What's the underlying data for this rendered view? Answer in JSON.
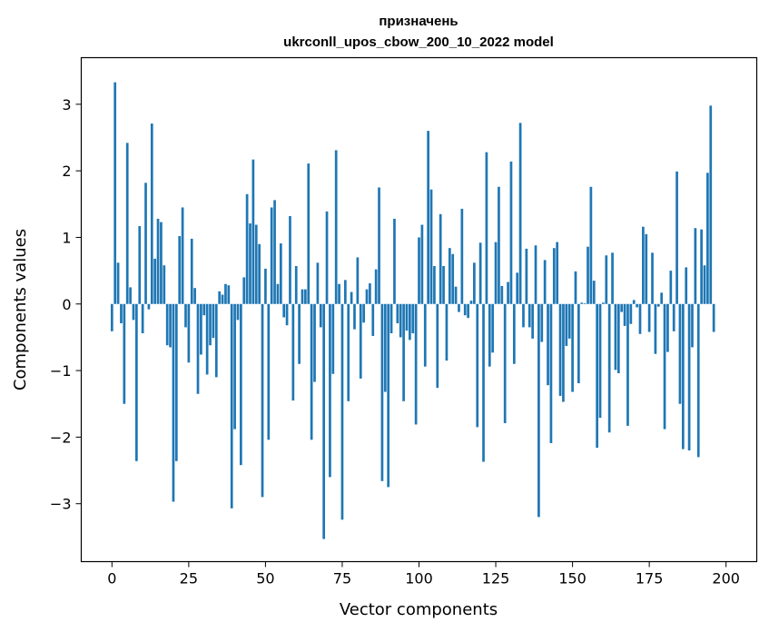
{
  "chart_data": {
    "type": "bar",
    "title_line1": "призначень",
    "title_line2": "ukrconll_upos_cbow_200_10_2022 model",
    "xlabel": "Vector components",
    "ylabel": "Components values",
    "xlim": [
      -10,
      210
    ],
    "ylim": [
      -3.87,
      3.7
    ],
    "xticks": [
      0,
      25,
      50,
      75,
      100,
      125,
      150,
      175,
      200
    ],
    "yticks": [
      -3,
      -2,
      -1,
      0,
      1,
      2,
      3
    ],
    "xtick_labels": [
      "0",
      "25",
      "50",
      "75",
      "100",
      "125",
      "150",
      "175",
      "200"
    ],
    "ytick_labels": [
      "−3",
      "−2",
      "−1",
      "0",
      "1",
      "2",
      "3"
    ],
    "grid": false,
    "bar_color": "#1f77b4",
    "values": [
      -0.41,
      3.33,
      0.62,
      -0.29,
      -1.5,
      2.42,
      0.25,
      -0.24,
      -2.36,
      1.17,
      -0.44,
      1.82,
      -0.08,
      2.71,
      0.68,
      1.28,
      1.23,
      0.58,
      -0.62,
      -0.65,
      -2.97,
      -2.36,
      1.02,
      1.45,
      -0.35,
      -0.88,
      0.98,
      0.24,
      -1.35,
      -0.76,
      -0.17,
      -1.06,
      -0.62,
      -0.51,
      -1.1,
      0.19,
      0.14,
      0.3,
      0.28,
      -3.07,
      -1.88,
      -0.24,
      -2.42,
      0.4,
      1.65,
      1.21,
      2.17,
      1.19,
      0.9,
      -2.9,
      0.53,
      -2.04,
      1.45,
      1.56,
      0.3,
      0.91,
      -0.2,
      -0.32,
      1.32,
      -1.45,
      0.57,
      -0.9,
      0.22,
      0.22,
      2.11,
      -2.04,
      -1.17,
      0.62,
      -0.35,
      -3.53,
      1.39,
      -2.6,
      -1.05,
      2.31,
      0.3,
      -3.24,
      0.36,
      -1.46,
      0.18,
      -0.38,
      0.7,
      -1.12,
      -0.28,
      0.22,
      0.31,
      -0.48,
      0.52,
      1.75,
      -2.66,
      -1.32,
      -2.75,
      -0.44,
      1.28,
      -0.29,
      -0.5,
      -1.46,
      -0.4,
      -0.54,
      -0.44,
      -1.81,
      1.0,
      1.19,
      -0.94,
      2.6,
      1.72,
      0.57,
      -1.26,
      1.35,
      0.57,
      -0.85,
      0.84,
      0.75,
      0.26,
      -0.12,
      1.43,
      -0.17,
      -0.21,
      0.05,
      0.62,
      -1.85,
      0.92,
      -2.37,
      2.28,
      -0.94,
      -0.73,
      0.93,
      1.76,
      0.27,
      -1.79,
      0.33,
      2.14,
      -0.9,
      0.47,
      2.72,
      -0.35,
      0.83,
      -0.35,
      -0.52,
      0.88,
      -3.2,
      -0.57,
      0.66,
      -1.22,
      -2.09,
      0.84,
      0.93,
      -1.38,
      -1.47,
      -0.63,
      -0.52,
      -1.32,
      0.49,
      -1.19,
      0.02,
      0.01,
      0.86,
      1.76,
      0.35,
      -2.16,
      -1.71,
      0.02,
      0.73,
      -1.93,
      0.77,
      -0.99,
      -1.04,
      -0.12,
      -0.33,
      -1.83,
      -0.3,
      0.06,
      -0.05,
      -0.45,
      1.16,
      1.05,
      -0.42,
      0.77,
      -0.75,
      -0.04,
      0.17,
      -1.88,
      -0.72,
      0.5,
      -0.41,
      1.99,
      -1.5,
      -2.18,
      0.55,
      -2.2,
      -0.65,
      1.14,
      -2.3,
      1.12,
      0.58,
      1.97,
      2.98,
      -0.42
    ]
  }
}
